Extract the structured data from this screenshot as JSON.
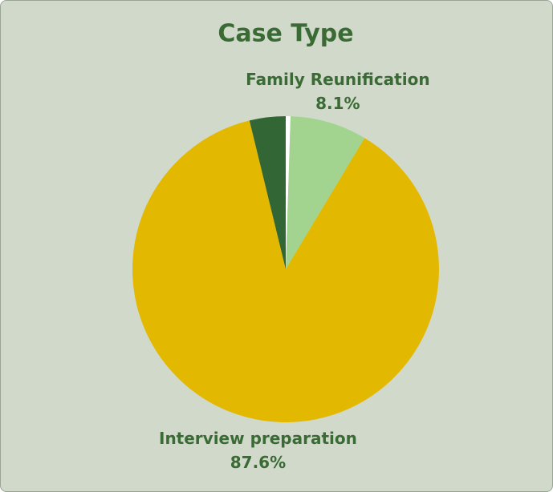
{
  "chart_data": {
    "type": "pie",
    "title": "Case Type",
    "categories": [
      null,
      "Family Reunification",
      "Interview preparation",
      null
    ],
    "values": [
      0.5,
      8.1,
      87.6,
      3.8
    ],
    "value_labels": [
      null,
      "8.1%",
      "87.6%",
      null
    ],
    "colors": [
      "#ffffff",
      "#a2d38f",
      "#e3b800",
      "#336635"
    ]
  }
}
